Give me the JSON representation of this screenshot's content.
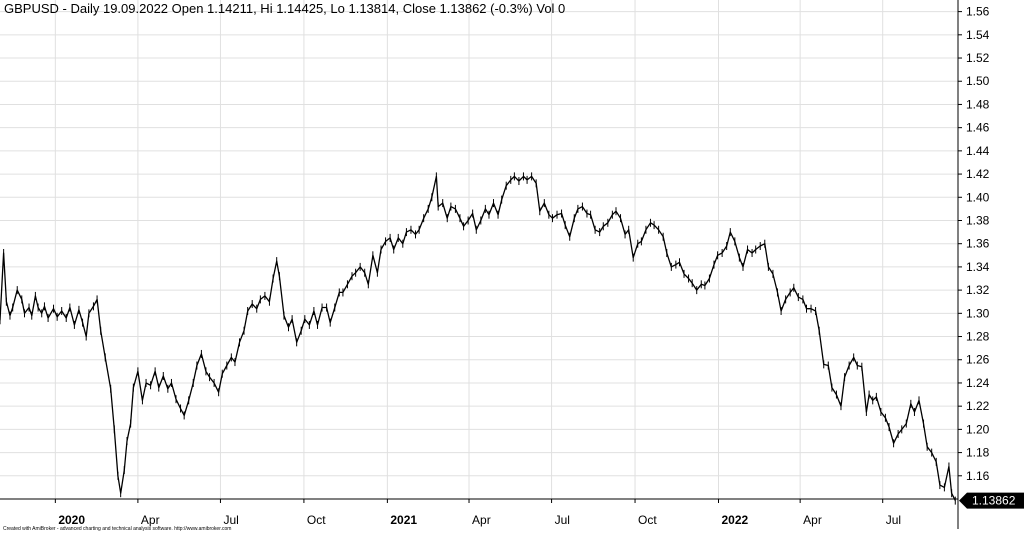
{
  "chart_data": {
    "type": "line",
    "title": "GBPUSD - Daily 19.09.2022 Open 1.14211, Hi 1.14425, Lo 1.13814, Close 1.13862 (-0.3%) Vol 0",
    "credit": "Created with AmiBroker - advanced charting and technical analysis software. http://www.amibroker.com",
    "last_value_label": "1.13862",
    "ylim": [
      1.14,
      1.57
    ],
    "y_ticks": [
      "1.56",
      "1.54",
      "1.52",
      "1.50",
      "1.48",
      "1.46",
      "1.44",
      "1.42",
      "1.40",
      "1.38",
      "1.36",
      "1.34",
      "1.32",
      "1.30",
      "1.28",
      "1.26",
      "1.24",
      "1.22",
      "1.20",
      "1.18",
      "1.16"
    ],
    "x_ticks": [
      {
        "label": "2020",
        "date": "2020-01-01",
        "bold": true
      },
      {
        "label": "Apr",
        "date": "2020-04-01",
        "bold": false
      },
      {
        "label": "Jul",
        "date": "2020-07-01",
        "bold": false
      },
      {
        "label": "Oct",
        "date": "2020-10-01",
        "bold": false
      },
      {
        "label": "2021",
        "date": "2021-01-01",
        "bold": true
      },
      {
        "label": "Apr",
        "date": "2021-04-01",
        "bold": false
      },
      {
        "label": "Jul",
        "date": "2021-07-01",
        "bold": false
      },
      {
        "label": "Oct",
        "date": "2021-10-01",
        "bold": false
      },
      {
        "label": "2022",
        "date": "2022-01-01",
        "bold": true
      },
      {
        "label": "Apr",
        "date": "2022-04-01",
        "bold": false
      },
      {
        "label": "Jul",
        "date": "2022-07-01",
        "bold": false
      }
    ],
    "xlim": [
      "2019-11-01",
      "2022-09-22"
    ],
    "grid": true,
    "colors": {
      "line": "#000000",
      "grid": "#e0e0e0",
      "label_bg": "#000000"
    },
    "series": [
      {
        "points": [
          [
            "2019-11-01",
            1.294
          ],
          [
            "2019-11-05",
            1.352
          ],
          [
            "2019-11-08",
            1.31
          ],
          [
            "2019-11-12",
            1.298
          ],
          [
            "2019-11-15",
            1.305
          ],
          [
            "2019-11-20",
            1.32
          ],
          [
            "2019-11-25",
            1.312
          ],
          [
            "2019-11-28",
            1.3
          ],
          [
            "2019-12-03",
            1.305
          ],
          [
            "2019-12-06",
            1.298
          ],
          [
            "2019-12-10",
            1.315
          ],
          [
            "2019-12-13",
            1.305
          ],
          [
            "2019-12-17",
            1.3
          ],
          [
            "2019-12-20",
            1.306
          ],
          [
            "2019-12-24",
            1.296
          ],
          [
            "2019-12-30",
            1.304
          ],
          [
            "2020-01-03",
            1.297
          ],
          [
            "2020-01-08",
            1.302
          ],
          [
            "2020-01-13",
            1.296
          ],
          [
            "2020-01-17",
            1.305
          ],
          [
            "2020-01-22",
            1.29
          ],
          [
            "2020-01-27",
            1.303
          ],
          [
            "2020-01-31",
            1.292
          ],
          [
            "2020-02-04",
            1.28
          ],
          [
            "2020-02-07",
            1.3
          ],
          [
            "2020-02-12",
            1.306
          ],
          [
            "2020-02-16",
            1.312
          ],
          [
            "2020-02-20",
            1.285
          ],
          [
            "2020-02-25",
            1.262
          ],
          [
            "2020-03-02",
            1.235
          ],
          [
            "2020-03-06",
            1.2
          ],
          [
            "2020-03-10",
            1.16
          ],
          [
            "2020-03-13",
            1.145
          ],
          [
            "2020-03-17",
            1.165
          ],
          [
            "2020-03-20",
            1.19
          ],
          [
            "2020-03-24",
            1.205
          ],
          [
            "2020-03-27",
            1.236
          ],
          [
            "2020-04-01",
            1.25
          ],
          [
            "2020-04-06",
            1.225
          ],
          [
            "2020-04-10",
            1.24
          ],
          [
            "2020-04-15",
            1.238
          ],
          [
            "2020-04-20",
            1.25
          ],
          [
            "2020-04-24",
            1.236
          ],
          [
            "2020-04-29",
            1.246
          ],
          [
            "2020-05-04",
            1.235
          ],
          [
            "2020-05-08",
            1.24
          ],
          [
            "2020-05-13",
            1.226
          ],
          [
            "2020-05-18",
            1.218
          ],
          [
            "2020-05-22",
            1.212
          ],
          [
            "2020-05-27",
            1.225
          ],
          [
            "2020-06-01",
            1.24
          ],
          [
            "2020-06-05",
            1.255
          ],
          [
            "2020-06-10",
            1.265
          ],
          [
            "2020-06-15",
            1.25
          ],
          [
            "2020-06-19",
            1.245
          ],
          [
            "2020-06-24",
            1.24
          ],
          [
            "2020-06-29",
            1.232
          ],
          [
            "2020-07-03",
            1.248
          ],
          [
            "2020-07-08",
            1.255
          ],
          [
            "2020-07-13",
            1.262
          ],
          [
            "2020-07-17",
            1.258
          ],
          [
            "2020-07-22",
            1.275
          ],
          [
            "2020-07-27",
            1.285
          ],
          [
            "2020-07-31",
            1.302
          ],
          [
            "2020-08-05",
            1.308
          ],
          [
            "2020-08-10",
            1.304
          ],
          [
            "2020-08-14",
            1.312
          ],
          [
            "2020-08-19",
            1.315
          ],
          [
            "2020-08-24",
            1.31
          ],
          [
            "2020-08-28",
            1.33
          ],
          [
            "2020-09-01",
            1.345
          ],
          [
            "2020-09-04",
            1.332
          ],
          [
            "2020-09-09",
            1.298
          ],
          [
            "2020-09-14",
            1.288
          ],
          [
            "2020-09-18",
            1.295
          ],
          [
            "2020-09-23",
            1.275
          ],
          [
            "2020-09-28",
            1.285
          ],
          [
            "2020-10-02",
            1.295
          ],
          [
            "2020-10-07",
            1.29
          ],
          [
            "2020-10-12",
            1.302
          ],
          [
            "2020-10-16",
            1.29
          ],
          [
            "2020-10-21",
            1.305
          ],
          [
            "2020-10-26",
            1.305
          ],
          [
            "2020-10-30",
            1.292
          ],
          [
            "2020-11-04",
            1.305
          ],
          [
            "2020-11-09",
            1.318
          ],
          [
            "2020-11-13",
            1.318
          ],
          [
            "2020-11-18",
            1.325
          ],
          [
            "2020-11-23",
            1.332
          ],
          [
            "2020-11-27",
            1.335
          ],
          [
            "2020-12-02",
            1.34
          ],
          [
            "2020-12-07",
            1.335
          ],
          [
            "2020-12-11",
            1.325
          ],
          [
            "2020-12-16",
            1.35
          ],
          [
            "2020-12-21",
            1.335
          ],
          [
            "2020-12-25",
            1.355
          ],
          [
            "2020-12-30",
            1.362
          ],
          [
            "2021-01-04",
            1.365
          ],
          [
            "2021-01-08",
            1.355
          ],
          [
            "2021-01-13",
            1.365
          ],
          [
            "2021-01-18",
            1.36
          ],
          [
            "2021-01-22",
            1.37
          ],
          [
            "2021-01-27",
            1.372
          ],
          [
            "2021-02-01",
            1.368
          ],
          [
            "2021-02-05",
            1.372
          ],
          [
            "2021-02-10",
            1.382
          ],
          [
            "2021-02-15",
            1.39
          ],
          [
            "2021-02-19",
            1.4
          ],
          [
            "2021-02-24",
            1.418
          ],
          [
            "2021-02-26",
            1.392
          ],
          [
            "2021-03-03",
            1.395
          ],
          [
            "2021-03-08",
            1.382
          ],
          [
            "2021-03-12",
            1.392
          ],
          [
            "2021-03-17",
            1.39
          ],
          [
            "2021-03-22",
            1.382
          ],
          [
            "2021-03-26",
            1.375
          ],
          [
            "2021-03-31",
            1.38
          ],
          [
            "2021-04-05",
            1.386
          ],
          [
            "2021-04-09",
            1.372
          ],
          [
            "2021-04-14",
            1.38
          ],
          [
            "2021-04-19",
            1.39
          ],
          [
            "2021-04-23",
            1.385
          ],
          [
            "2021-04-28",
            1.395
          ],
          [
            "2021-05-03",
            1.385
          ],
          [
            "2021-05-07",
            1.398
          ],
          [
            "2021-05-12",
            1.41
          ],
          [
            "2021-05-17",
            1.415
          ],
          [
            "2021-05-21",
            1.418
          ],
          [
            "2021-05-26",
            1.414
          ],
          [
            "2021-05-31",
            1.418
          ],
          [
            "2021-06-04",
            1.415
          ],
          [
            "2021-06-09",
            1.418
          ],
          [
            "2021-06-14",
            1.412
          ],
          [
            "2021-06-18",
            1.388
          ],
          [
            "2021-06-23",
            1.395
          ],
          [
            "2021-06-28",
            1.385
          ],
          [
            "2021-07-02",
            1.382
          ],
          [
            "2021-07-07",
            1.385
          ],
          [
            "2021-07-12",
            1.386
          ],
          [
            "2021-07-16",
            1.376
          ],
          [
            "2021-07-21",
            1.366
          ],
          [
            "2021-07-26",
            1.382
          ],
          [
            "2021-07-30",
            1.39
          ],
          [
            "2021-08-04",
            1.392
          ],
          [
            "2021-08-09",
            1.386
          ],
          [
            "2021-08-13",
            1.385
          ],
          [
            "2021-08-18",
            1.372
          ],
          [
            "2021-08-23",
            1.37
          ],
          [
            "2021-08-27",
            1.375
          ],
          [
            "2021-09-01",
            1.378
          ],
          [
            "2021-09-06",
            1.385
          ],
          [
            "2021-09-10",
            1.388
          ],
          [
            "2021-09-15",
            1.382
          ],
          [
            "2021-09-20",
            1.368
          ],
          [
            "2021-09-24",
            1.372
          ],
          [
            "2021-09-29",
            1.348
          ],
          [
            "2021-10-04",
            1.36
          ],
          [
            "2021-10-08",
            1.362
          ],
          [
            "2021-10-13",
            1.372
          ],
          [
            "2021-10-18",
            1.378
          ],
          [
            "2021-10-22",
            1.376
          ],
          [
            "2021-10-27",
            1.372
          ],
          [
            "2021-11-01",
            1.366
          ],
          [
            "2021-11-05",
            1.352
          ],
          [
            "2021-11-10",
            1.34
          ],
          [
            "2021-11-15",
            1.342
          ],
          [
            "2021-11-19",
            1.344
          ],
          [
            "2021-11-24",
            1.334
          ],
          [
            "2021-11-29",
            1.33
          ],
          [
            "2021-12-03",
            1.326
          ],
          [
            "2021-12-08",
            1.32
          ],
          [
            "2021-12-13",
            1.325
          ],
          [
            "2021-12-17",
            1.324
          ],
          [
            "2021-12-22",
            1.33
          ],
          [
            "2021-12-27",
            1.342
          ],
          [
            "2021-12-31",
            1.35
          ],
          [
            "2022-01-05",
            1.352
          ],
          [
            "2022-01-10",
            1.358
          ],
          [
            "2022-01-14",
            1.37
          ],
          [
            "2022-01-19",
            1.362
          ],
          [
            "2022-01-24",
            1.348
          ],
          [
            "2022-01-28",
            1.34
          ],
          [
            "2022-02-02",
            1.355
          ],
          [
            "2022-02-07",
            1.352
          ],
          [
            "2022-02-11",
            1.355
          ],
          [
            "2022-02-16",
            1.358
          ],
          [
            "2022-02-21",
            1.36
          ],
          [
            "2022-02-25",
            1.34
          ],
          [
            "2022-03-02",
            1.334
          ],
          [
            "2022-03-07",
            1.318
          ],
          [
            "2022-03-11",
            1.302
          ],
          [
            "2022-03-16",
            1.312
          ],
          [
            "2022-03-21",
            1.318
          ],
          [
            "2022-03-25",
            1.322
          ],
          [
            "2022-03-30",
            1.314
          ],
          [
            "2022-04-04",
            1.312
          ],
          [
            "2022-04-08",
            1.304
          ],
          [
            "2022-04-13",
            1.304
          ],
          [
            "2022-04-18",
            1.302
          ],
          [
            "2022-04-22",
            1.285
          ],
          [
            "2022-04-27",
            1.256
          ],
          [
            "2022-05-02",
            1.255
          ],
          [
            "2022-05-06",
            1.236
          ],
          [
            "2022-05-11",
            1.23
          ],
          [
            "2022-05-16",
            1.22
          ],
          [
            "2022-05-20",
            1.245
          ],
          [
            "2022-05-25",
            1.255
          ],
          [
            "2022-05-30",
            1.262
          ],
          [
            "2022-06-03",
            1.255
          ],
          [
            "2022-06-08",
            1.254
          ],
          [
            "2022-06-13",
            1.215
          ],
          [
            "2022-06-16",
            1.23
          ],
          [
            "2022-06-20",
            1.225
          ],
          [
            "2022-06-24",
            1.228
          ],
          [
            "2022-06-29",
            1.215
          ],
          [
            "2022-07-04",
            1.21
          ],
          [
            "2022-07-08",
            1.202
          ],
          [
            "2022-07-13",
            1.188
          ],
          [
            "2022-07-18",
            1.196
          ],
          [
            "2022-07-22",
            1.2
          ],
          [
            "2022-07-27",
            1.205
          ],
          [
            "2022-08-01",
            1.222
          ],
          [
            "2022-08-05",
            1.215
          ],
          [
            "2022-08-10",
            1.225
          ],
          [
            "2022-08-15",
            1.205
          ],
          [
            "2022-08-19",
            1.185
          ],
          [
            "2022-08-24",
            1.18
          ],
          [
            "2022-08-29",
            1.172
          ],
          [
            "2022-09-02",
            1.152
          ],
          [
            "2022-09-07",
            1.15
          ],
          [
            "2022-09-12",
            1.168
          ],
          [
            "2022-09-15",
            1.145
          ],
          [
            "2022-09-19",
            1.1386
          ]
        ]
      }
    ]
  }
}
